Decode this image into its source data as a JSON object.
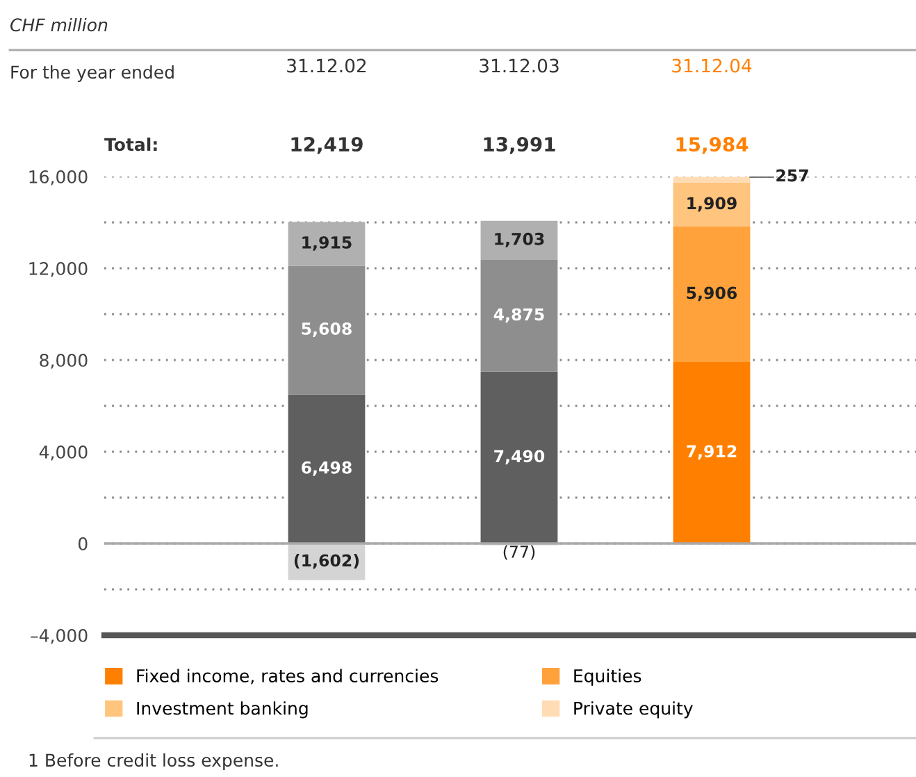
{
  "chart_data": {
    "type": "bar",
    "stacked": true,
    "categories": [
      "31.12.02",
      "31.12.03",
      "31.12.04"
    ],
    "series": [
      {
        "name": "Fixed income, rates and currencies",
        "color": "#ff8000",
        "colors": [
          "#5f5f5f",
          "#5f5f5f",
          "#ff8000"
        ],
        "values": [
          6498,
          7490,
          7912
        ],
        "value_labels": [
          "6,498",
          "7,490",
          "7,912"
        ]
      },
      {
        "name": "Equities",
        "color": "#ffa23c",
        "colors": [
          "#8e8e8e",
          "#8e8e8e",
          "#ffa23c"
        ],
        "values": [
          5608,
          4875,
          5906
        ],
        "value_labels": [
          "5,608",
          "4,875",
          "5,906"
        ]
      },
      {
        "name": "Investment banking",
        "color": "#ffc47e",
        "colors": [
          "#b0b0b0",
          "#b0b0b0",
          "#ffc47e"
        ],
        "values": [
          1915,
          1703,
          1909
        ],
        "value_labels": [
          "1,915",
          "1,703",
          "1,909"
        ]
      },
      {
        "name": "Private equity",
        "color": "#ffdcb4",
        "colors": [
          "#d4d4d4",
          "#d4d4d4",
          "#ffdcb4"
        ],
        "values": [
          -1602,
          -77,
          257
        ],
        "value_labels": [
          "(1,602)",
          "(77)",
          "257"
        ]
      }
    ],
    "ylim": [
      -4000,
      16000
    ],
    "yticks": [
      {
        "value": 16000,
        "label": "16,000"
      },
      {
        "value": 14000,
        "label": null
      },
      {
        "value": 12000,
        "label": "12,000"
      },
      {
        "value": 10000,
        "label": null
      },
      {
        "value": 8000,
        "label": "8,000"
      },
      {
        "value": 6000,
        "label": null
      },
      {
        "value": 4000,
        "label": "4,000"
      },
      {
        "value": 2000,
        "label": null
      },
      0,
      {
        "value": -2000,
        "label": null
      },
      {
        "value": -4000,
        "label": "–4,000"
      }
    ],
    "grid": "y",
    "legend": "bottom",
    "annotations": [
      "CHF million",
      "For the year ended",
      "Total:",
      "1 Before credit loss expense.",
      "12,419",
      "13,991",
      "15,984"
    ]
  }
}
